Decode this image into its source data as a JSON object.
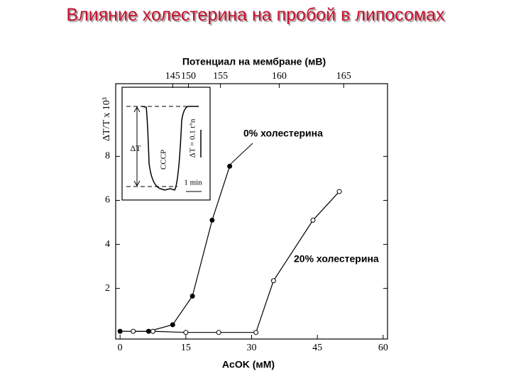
{
  "chart_data": {
    "type": "line",
    "title": "Влияние холестерина на пробой в липосомах",
    "xlabel": "AcOK (мМ)",
    "x2label": "Потенциал на мембране (мВ)",
    "ylabel": "ΔT/T x 10³",
    "inset_labels": [
      "ΔT",
      "CCCP",
      "1 min",
      "ΔT = 0.1 t°n"
    ],
    "xlim": [
      -1,
      61
    ],
    "ylim": [
      -0.3,
      11.3
    ],
    "xticks": [
      0,
      15,
      30,
      45,
      60
    ],
    "yticks": [
      2,
      4,
      6,
      8
    ],
    "x2ticks": [
      {
        "value": 12,
        "label": "145"
      },
      {
        "value": 15.6,
        "label": "150"
      },
      {
        "value": 22.9,
        "label": "155"
      },
      {
        "value": 36.3,
        "label": "160"
      },
      {
        "value": 51,
        "label": "165"
      }
    ],
    "series": [
      {
        "name": "0% холестерина",
        "color": "#000000",
        "marker": "filled",
        "x": [
          0,
          6.5,
          12,
          16.5,
          21,
          25
        ],
        "values": [
          0.05,
          0.05,
          0.35,
          1.65,
          5.1,
          7.55
        ]
      },
      {
        "name": "20% холестерина",
        "color": "#000000",
        "marker": "open",
        "x": [
          3,
          7.5,
          15,
          22.5,
          31,
          35,
          44,
          50
        ],
        "values": [
          0.05,
          0.05,
          0,
          0,
          0,
          2.35,
          5.1,
          6.4
        ]
      }
    ]
  }
}
